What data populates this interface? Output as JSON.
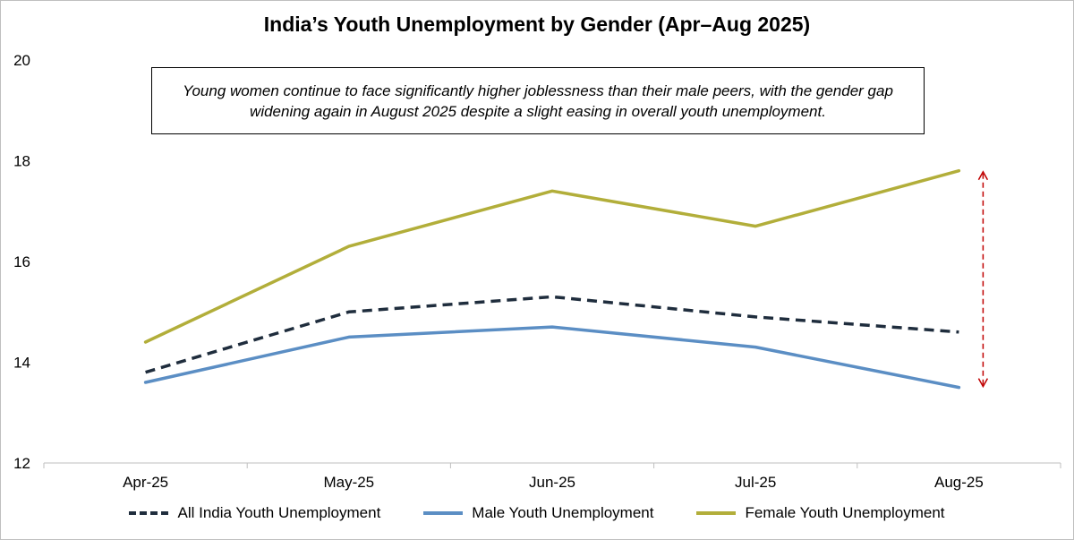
{
  "chart_data": {
    "type": "line",
    "title": "India’s Youth Unemployment by Gender (Apr–Aug 2025)",
    "annotation": "Young women continue to face significantly higher joblessness than their male peers, with the gender gap widening again in August 2025 despite a slight easing in overall youth unemployment.",
    "categories": [
      "Apr-25",
      "May-25",
      "Jun-25",
      "Jul-25",
      "Aug-25"
    ],
    "ylim": [
      12,
      20
    ],
    "yticks": [
      "12",
      "14",
      "16",
      "18",
      "20"
    ],
    "grid": false,
    "legend_position": "bottom",
    "series": [
      {
        "name": "All India Youth Unemployment",
        "values": [
          13.8,
          15.0,
          15.3,
          14.9,
          14.6
        ],
        "color": "#1f2d3d",
        "style": "dashed"
      },
      {
        "name": "Male Youth Unemployment",
        "values": [
          13.6,
          14.5,
          14.7,
          14.3,
          13.5
        ],
        "color": "#5b8ec4",
        "style": "solid"
      },
      {
        "name": "Female Youth Unemployment",
        "values": [
          14.4,
          16.3,
          17.4,
          16.7,
          17.8
        ],
        "color": "#b2ae3a",
        "style": "solid"
      }
    ],
    "gap_arrow_color": "#c00000"
  }
}
